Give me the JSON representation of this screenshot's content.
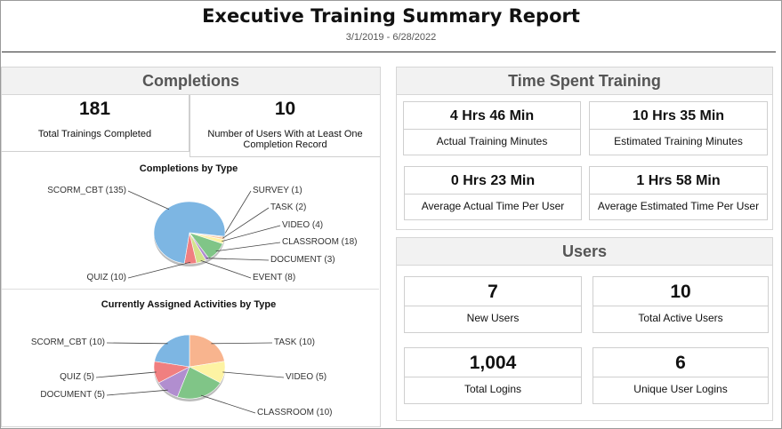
{
  "header": {
    "title": "Executive Training Summary Report",
    "date_range": "3/1/2019 - 6/28/2022"
  },
  "completions": {
    "title": "Completions",
    "stats": [
      {
        "value": "181",
        "label": "Total Trainings Completed"
      },
      {
        "value": "10",
        "label": "Number of Users With at Least One Completion Record"
      }
    ]
  },
  "time_spent": {
    "title": "Time Spent Training",
    "stats": [
      {
        "value": "4 Hrs 46 Min",
        "label": "Actual Training Minutes"
      },
      {
        "value": "10 Hrs 35 Min",
        "label": "Estimated Training Minutes"
      },
      {
        "value": "0 Hrs 23 Min",
        "label": "Average Actual Time Per User"
      },
      {
        "value": "1 Hrs 58 Min",
        "label": "Average Estimated Time Per User"
      }
    ]
  },
  "users": {
    "title": "Users",
    "stats": [
      {
        "value": "7",
        "label": "New Users"
      },
      {
        "value": "10",
        "label": "Total Active Users"
      },
      {
        "value": "1,004",
        "label": "Total Logins"
      },
      {
        "value": "6",
        "label": "Unique User Logins"
      }
    ]
  },
  "chart_data": [
    {
      "type": "pie",
      "title": "Completions by Type",
      "slices": [
        {
          "label": "SURVEY (1)",
          "value": 1,
          "color": "#f7b48c"
        },
        {
          "label": "TASK (2)",
          "value": 2,
          "color": "#f9c89b"
        },
        {
          "label": "VIDEO (4)",
          "value": 4,
          "color": "#fdf2a2"
        },
        {
          "label": "CLASSROOM (18)",
          "value": 18,
          "color": "#80c587"
        },
        {
          "label": "DOCUMENT (3)",
          "value": 3,
          "color": "#b18ecf"
        },
        {
          "label": "EVENT (8)",
          "value": 8,
          "color": "#d3e38c"
        },
        {
          "label": "QUIZ (10)",
          "value": 10,
          "color": "#f07f80"
        },
        {
          "label": "SCORM_CBT (135)",
          "value": 135,
          "color": "#7db6e3"
        }
      ]
    },
    {
      "type": "pie",
      "title": "Currently Assigned Activities by Type",
      "slices": [
        {
          "label": "TASK (10)",
          "value": 10,
          "color": "#f8b48e"
        },
        {
          "label": "VIDEO (5)",
          "value": 5,
          "color": "#fdf3a3"
        },
        {
          "label": "CLASSROOM (10)",
          "value": 10,
          "color": "#80c587"
        },
        {
          "label": "DOCUMENT (5)",
          "value": 5,
          "color": "#b18ecf"
        },
        {
          "label": "QUIZ (5)",
          "value": 5,
          "color": "#f07f80"
        },
        {
          "label": "SCORM_CBT (10)",
          "value": 10,
          "color": "#7db6e3"
        }
      ]
    }
  ]
}
